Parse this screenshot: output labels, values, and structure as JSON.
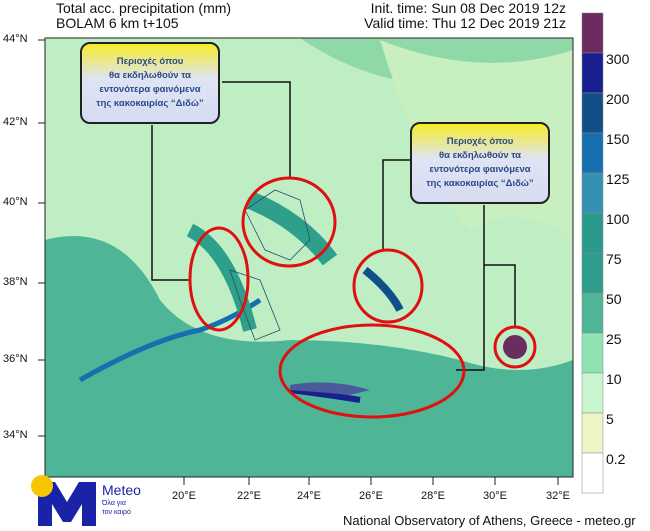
{
  "header": {
    "title": "Total acc. precipitation (mm)",
    "model": "BOLAM 6 km t+105",
    "init_time": "Init. time: Sun 08 Dec 2019 12z",
    "valid_time": "Valid time: Thu 12 Dec 2019 21z"
  },
  "lat_ticks": [
    "44°N",
    "42°N",
    "40°N",
    "38°N",
    "36°N",
    "34°N"
  ],
  "lon_ticks": [
    "20°E",
    "22°E",
    "24°E",
    "26°E",
    "28°E",
    "30°E",
    "32°E"
  ],
  "colorbar": {
    "labels": [
      "300",
      "200",
      "150",
      "125",
      "100",
      "75",
      "50",
      "25",
      "10",
      "5",
      "0.2"
    ],
    "colors": [
      "#6b2c5f",
      "#18208f",
      "#114f88",
      "#1670af",
      "#3391b4",
      "#2a9a8c",
      "#2e9f8b",
      "#4fb597",
      "#8fe3b2",
      "#c9f6cf",
      "#eef5c4",
      "#ffffff"
    ]
  },
  "callouts": [
    {
      "lines": [
        "Περιοχές όπου",
        "θα εκδηλωθούν τα",
        "εντονότερα φαινόμενα",
        "της κακοκαιρίας “Διδώ”"
      ]
    },
    {
      "lines": [
        "Περιοχές όπου",
        "θα εκδηλωθούν τα",
        "εντονότερα φαινόμενα",
        "της κακοκαιρίας “Διδώ”"
      ]
    }
  ],
  "logo": {
    "name": "Meteo",
    "tagline1": "Όλα για",
    "tagline2": "τον καιρό",
    "accent": "#1a22a8",
    "sun": "#f7c600"
  },
  "footer": "National Observatory of Athens, Greece - meteo.gr",
  "highlight_color": "#e01010"
}
